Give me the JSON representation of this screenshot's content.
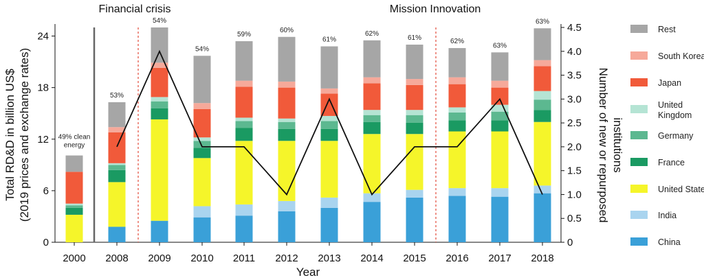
{
  "chart_data": {
    "type": "bar",
    "stacked": true,
    "title": "",
    "xlabel": "Year",
    "ylabel": "Total RD&D in billion US$\n(2019 prices and exchange rates)",
    "y2label": "Number of new or repurposed\ninstitutions",
    "ylim": [
      0,
      25
    ],
    "y2lim": [
      0,
      4.5
    ],
    "yticks": [
      "0",
      "6",
      "12",
      "18",
      "24"
    ],
    "y2ticks": [
      "0",
      "0.5",
      "1.0",
      "1.5",
      "2.0",
      "2.5",
      "3.0",
      "3.5",
      "4.0",
      "4.5"
    ],
    "categories": [
      "2000",
      "2008",
      "2009",
      "2010",
      "2011",
      "2012",
      "2013",
      "2014",
      "2015",
      "2016",
      "2017",
      "2018"
    ],
    "series": [
      {
        "name": "China",
        "color": "#3aa0d8",
        "values": [
          0,
          1.8,
          2.5,
          2.9,
          3.1,
          3.6,
          4.0,
          4.7,
          5.2,
          5.4,
          5.3,
          5.7
        ]
      },
      {
        "name": "India",
        "color": "#a9d4ef",
        "values": [
          0,
          0,
          0,
          1.3,
          1.3,
          1.2,
          1.2,
          1.0,
          0.9,
          0.9,
          1.0,
          0.9
        ]
      },
      {
        "name": "United States",
        "color": "#f5f52a",
        "values": [
          3.2,
          5.2,
          11.8,
          5.6,
          7.4,
          7.0,
          6.6,
          6.9,
          6.5,
          6.6,
          6.6,
          7.4
        ]
      },
      {
        "name": "France",
        "color": "#1a9a62",
        "values": [
          0.8,
          1.4,
          1.3,
          1.2,
          1.5,
          1.4,
          1.4,
          1.4,
          1.3,
          1.3,
          1.3,
          1.4
        ]
      },
      {
        "name": "Germany",
        "color": "#5cb890",
        "values": [
          0.3,
          0.6,
          0.8,
          0.8,
          0.8,
          0.8,
          0.9,
          0.8,
          0.9,
          0.9,
          1.0,
          1.2
        ]
      },
      {
        "name": "United Kingdom",
        "color": "#b5e4d4",
        "values": [
          0.2,
          0.2,
          0.5,
          0.4,
          0.4,
          0.4,
          0.6,
          0.6,
          0.6,
          0.6,
          0.8,
          1.0
        ]
      },
      {
        "name": "Japan",
        "color": "#f15a3a",
        "values": [
          3.7,
          3.6,
          3.4,
          3.3,
          3.6,
          3.6,
          2.6,
          3.1,
          2.9,
          2.7,
          2.0,
          2.9
        ]
      },
      {
        "name": "South Korea",
        "color": "#f6a99a",
        "values": [
          0,
          0.6,
          0.6,
          0.7,
          0.7,
          0.7,
          0.6,
          0.7,
          0.7,
          0.8,
          0.8,
          0.7
        ]
      },
      {
        "name": "Rest",
        "color": "#a6a6a6",
        "values": [
          1.9,
          2.9,
          4.1,
          5.5,
          4.6,
          5.2,
          4.9,
          4.3,
          4.0,
          3.4,
          3.3,
          3.7
        ]
      }
    ],
    "line": {
      "name": "Number of new or repurposed institutions",
      "color": "#111111",
      "x": [
        "2008",
        "2009",
        "2010",
        "2011",
        "2012",
        "2013",
        "2014",
        "2015",
        "2016",
        "2017",
        "2018"
      ],
      "values": [
        2.0,
        4.0,
        2.0,
        2.0,
        1.0,
        3.0,
        1.0,
        2.0,
        2.0,
        3.0,
        1.0
      ]
    },
    "percent_labels": [
      {
        "category": "2008",
        "text": "53%"
      },
      {
        "category": "2009",
        "text": "54%"
      },
      {
        "category": "2010",
        "text": "54%"
      },
      {
        "category": "2011",
        "text": "59%"
      },
      {
        "category": "2012",
        "text": "60%"
      },
      {
        "category": "2013",
        "text": "61%"
      },
      {
        "category": "2014",
        "text": "62%"
      },
      {
        "category": "2015",
        "text": "61%"
      },
      {
        "category": "2016",
        "text": "62%"
      },
      {
        "category": "2017",
        "text": "63%"
      },
      {
        "category": "2018",
        "text": "63%"
      }
    ],
    "annotations": [
      {
        "text": "Financial crisis",
        "after": "2000"
      },
      {
        "text": "Mission Innovation",
        "after": "2015"
      }
    ],
    "note_2000": "49% clean energy",
    "legend_order": [
      "Rest",
      "South Korea",
      "Japan",
      "United Kingdom",
      "Germany",
      "France",
      "United States",
      "India",
      "China"
    ],
    "legend_position": "right",
    "grid": false
  }
}
